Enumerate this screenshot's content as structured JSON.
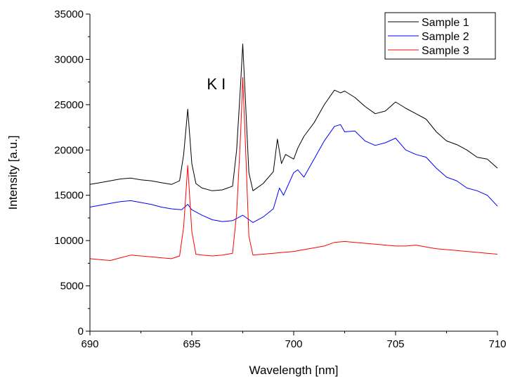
{
  "chart_data": {
    "type": "line",
    "title": "",
    "xlabel": "Wavelength [nm]",
    "ylabel": "Intensity [a.u.]",
    "xlim": [
      690,
      710
    ],
    "ylim": [
      0,
      35000
    ],
    "xticks": [
      690,
      695,
      700,
      705,
      710
    ],
    "yticks": [
      0,
      5000,
      10000,
      15000,
      20000,
      25000,
      30000,
      35000
    ],
    "grid": false,
    "legend_position": "top-right",
    "annotations": [
      {
        "text": "K I",
        "x": 696.2,
        "y": 26700
      }
    ],
    "series": [
      {
        "name": "Sample 1",
        "color": "#000000",
        "x": [
          690,
          690.5,
          691,
          691.5,
          692,
          692.5,
          693,
          693.5,
          694,
          694.4,
          694.6,
          694.8,
          695.0,
          695.2,
          695.5,
          696,
          696.5,
          697.0,
          697.2,
          697.4,
          697.5,
          697.6,
          697.8,
          698.0,
          698.5,
          699,
          699.2,
          699.4,
          699.6,
          700,
          700.2,
          700.5,
          701,
          701.5,
          702,
          702.3,
          702.5,
          703,
          703.5,
          704,
          704.5,
          705,
          705.5,
          706,
          706.5,
          707,
          707.5,
          708,
          708.5,
          709,
          709.5,
          710
        ],
        "y": [
          16200,
          16400,
          16600,
          16800,
          16900,
          16700,
          16600,
          16400,
          16200,
          16600,
          19500,
          24500,
          18500,
          16300,
          15800,
          15500,
          15600,
          16000,
          20000,
          27500,
          31700,
          27000,
          17500,
          15500,
          16300,
          17600,
          21200,
          18500,
          19500,
          19000,
          20200,
          21500,
          23000,
          25000,
          26600,
          26300,
          26500,
          25800,
          24800,
          24000,
          24300,
          25300,
          24600,
          24000,
          23400,
          22000,
          21000,
          20600,
          20000,
          19200,
          19000,
          18000
        ]
      },
      {
        "name": "Sample 2",
        "color": "#0000ff",
        "x": [
          690,
          690.5,
          691,
          691.5,
          692,
          692.5,
          693,
          693.5,
          694,
          694.5,
          694.8,
          695.0,
          695.5,
          696,
          696.5,
          697.0,
          697.5,
          698.0,
          698.5,
          699,
          699.3,
          699.5,
          700,
          700.2,
          700.5,
          701,
          701.5,
          702,
          702.3,
          702.5,
          703,
          703.5,
          704,
          704.5,
          705,
          705.5,
          706,
          706.5,
          707,
          707.5,
          708,
          708.5,
          709,
          709.5,
          710
        ],
        "y": [
          13700,
          13900,
          14100,
          14300,
          14400,
          14200,
          14000,
          13700,
          13500,
          13400,
          14000,
          13400,
          12800,
          12300,
          12100,
          12200,
          12800,
          12000,
          12600,
          13500,
          15800,
          15000,
          17500,
          17800,
          17000,
          19000,
          21000,
          22600,
          22800,
          22000,
          22100,
          21000,
          20500,
          20800,
          21300,
          20000,
          19500,
          19200,
          18000,
          17000,
          16600,
          15800,
          15500,
          15000,
          13800
        ]
      },
      {
        "name": "Sample 3",
        "color": "#ff0000",
        "x": [
          690,
          690.5,
          691,
          691.5,
          692,
          692.5,
          693,
          693.5,
          694,
          694.4,
          694.6,
          694.8,
          695.0,
          695.2,
          695.5,
          696,
          696.5,
          697.0,
          697.2,
          697.4,
          697.5,
          697.6,
          697.8,
          698.0,
          698.5,
          699,
          699.5,
          700,
          700.5,
          701,
          701.5,
          702,
          702.5,
          703,
          703.5,
          704,
          704.5,
          705,
          705.5,
          706,
          706.5,
          707,
          707.5,
          708,
          708.5,
          709,
          709.5,
          710
        ],
        "y": [
          8000,
          7900,
          7800,
          8100,
          8400,
          8300,
          8200,
          8100,
          8000,
          8300,
          11500,
          18300,
          11000,
          8500,
          8400,
          8300,
          8400,
          8600,
          13000,
          22000,
          28000,
          22500,
          10500,
          8400,
          8500,
          8600,
          8700,
          8800,
          9000,
          9200,
          9400,
          9800,
          9900,
          9800,
          9700,
          9600,
          9500,
          9400,
          9400,
          9500,
          9300,
          9100,
          9000,
          8900,
          8800,
          8700,
          8600,
          8500
        ]
      }
    ]
  }
}
